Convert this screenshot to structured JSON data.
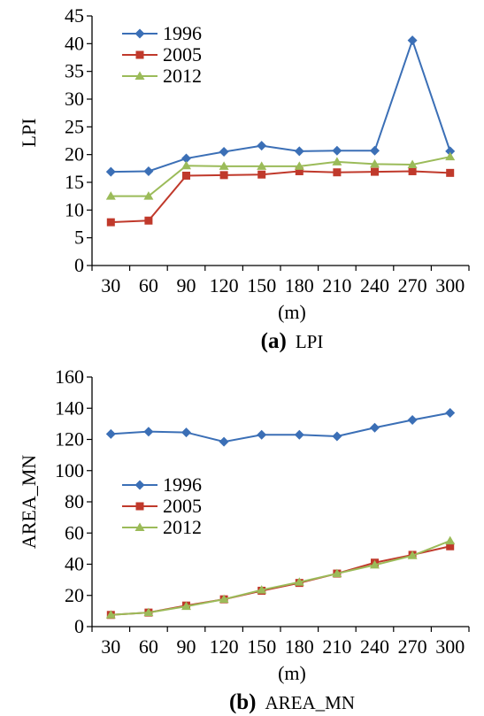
{
  "chart_data": [
    {
      "type": "line",
      "caption_letter": "(a)",
      "caption_text": "LPI",
      "xlabel": "(m)",
      "ylabel": "LPI",
      "categories": [
        "30",
        "60",
        "90",
        "120",
        "150",
        "180",
        "210",
        "240",
        "270",
        "300"
      ],
      "ylim": [
        0,
        45
      ],
      "yticks": [
        0,
        5,
        10,
        15,
        20,
        25,
        30,
        35,
        40,
        45
      ],
      "grid": false,
      "legend_position": "top-left",
      "series": [
        {
          "name": "1996",
          "color": "#3b6fb6",
          "marker": "diamond",
          "values": [
            16.9,
            17.0,
            19.3,
            20.5,
            21.6,
            20.6,
            20.7,
            20.7,
            40.6,
            20.6
          ]
        },
        {
          "name": "2005",
          "color": "#c0392b",
          "marker": "square",
          "values": [
            7.8,
            8.1,
            16.2,
            16.3,
            16.4,
            17.0,
            16.8,
            16.9,
            17.0,
            16.7
          ]
        },
        {
          "name": "2012",
          "color": "#9bbb59",
          "marker": "triangle",
          "values": [
            12.5,
            12.5,
            18.0,
            17.9,
            17.9,
            17.9,
            18.7,
            18.3,
            18.2,
            19.6
          ]
        }
      ]
    },
    {
      "type": "line",
      "caption_letter": "(b)",
      "caption_text": "AREA_MN",
      "xlabel": "(m)",
      "ylabel": "AREA_MN",
      "categories": [
        "30",
        "60",
        "90",
        "120",
        "150",
        "180",
        "210",
        "240",
        "270",
        "300"
      ],
      "ylim": [
        0,
        160
      ],
      "yticks": [
        0,
        20,
        40,
        60,
        80,
        100,
        120,
        140,
        160
      ],
      "grid": false,
      "legend_position": "center-left",
      "series": [
        {
          "name": "1996",
          "color": "#3b6fb6",
          "marker": "diamond",
          "values": [
            123.5,
            125.0,
            124.5,
            118.5,
            123.0,
            123.0,
            122.0,
            127.5,
            132.5,
            137.0
          ]
        },
        {
          "name": "2005",
          "color": "#c0392b",
          "marker": "square",
          "values": [
            7.5,
            9.0,
            13.5,
            17.5,
            23.0,
            28.0,
            34.0,
            41.0,
            46.0,
            51.5
          ]
        },
        {
          "name": "2012",
          "color": "#9bbb59",
          "marker": "triangle",
          "values": [
            7.5,
            9.0,
            13.0,
            17.5,
            23.5,
            28.5,
            34.0,
            39.5,
            45.5,
            55.0
          ]
        }
      ]
    }
  ]
}
